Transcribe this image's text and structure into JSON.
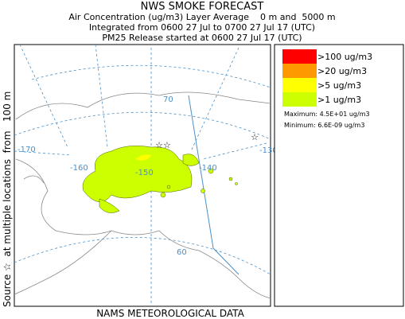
{
  "header": {
    "title": "NWS SMOKE FORECAST",
    "lines": [
      "Air Concentration (ug/m3) Layer Average    0 m and  5000 m",
      "Integrated from 0600 27 Jul to 0700 27 Jul 17 (UTC)",
      "PM25 Release started at 0600 27 Jul 17 (UTC)"
    ]
  },
  "side_label": "Source ☆  at multiple locations  from   100 m",
  "footer": "NAMS METEOROLOGICAL DATA",
  "map": {
    "labels": [
      "70",
      "-170",
      "-160",
      "-150",
      "-140",
      "-130",
      "60"
    ]
  },
  "legend": {
    "entries": [
      {
        "label": ">100 ug/m3",
        "color": "#ff0000"
      },
      {
        "label": ">20 ug/m3",
        "color": "#ff9900"
      },
      {
        "label": ">5 ug/m3",
        "color": "#ffff00"
      },
      {
        "label": ">1 ug/m3",
        "color": "#ccff00"
      }
    ],
    "maximum": "Maximum: 4.5E+01 ug/m3",
    "minimum": "Minimum: 6.6E-09 ug/m3"
  }
}
